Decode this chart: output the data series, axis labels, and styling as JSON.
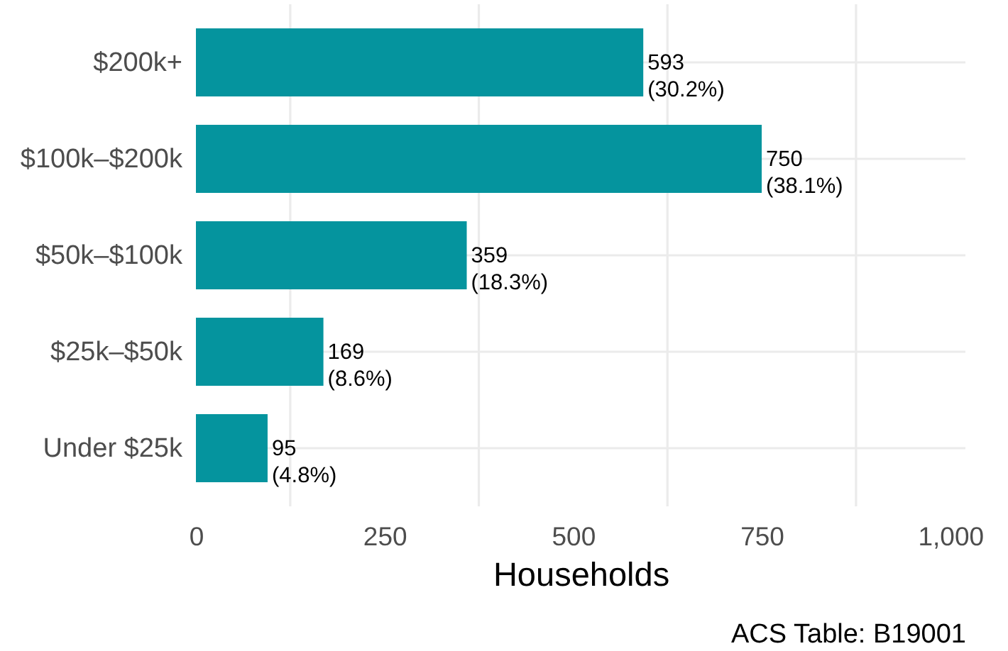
{
  "chart_data": {
    "type": "bar",
    "orientation": "horizontal",
    "categories": [
      "$200k+",
      "$100k–$200k",
      "$50k–$100k",
      "$25k–$50k",
      "Under $25k"
    ],
    "values": [
      593,
      750,
      359,
      169,
      95
    ],
    "value_labels": [
      "593\n (30.2%)",
      "750\n (38.1%)",
      "359\n (18.3%)",
      "169\n (8.6%)",
      "95\n (4.8%)"
    ],
    "color": "#05949e",
    "xlabel": "Households",
    "xlim": [
      0,
      1020
    ],
    "xticks": [
      0,
      {
        "value": 125,
        "label": null
      },
      250,
      {
        "value": 375,
        "label": null
      },
      500,
      {
        "value": 625,
        "label": null
      },
      750,
      {
        "value": 875,
        "label": null
      },
      {
        "value": 1000,
        "label": "1,000"
      }
    ],
    "grid": true,
    "annotations": [
      "ACS Table: B19001"
    ]
  }
}
